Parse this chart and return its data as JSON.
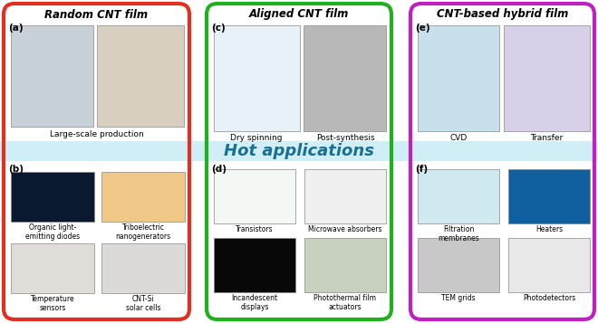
{
  "fig_width": 6.6,
  "fig_height": 3.57,
  "dpi": 100,
  "bg_color": "#ffffff",
  "section_titles": {
    "left": "Random CNT film",
    "center": "Aligned CNT film",
    "right": "CNT-based hybrid film"
  },
  "section_border_colors": {
    "left": "#e03020",
    "center": "#20b020",
    "right": "#c020c0"
  },
  "section_title_colors": {
    "left": "#000000",
    "center": "#000000",
    "right": "#000000"
  },
  "hot_applications_text": "Hot applications",
  "hot_applications_color": "#1a7090",
  "hot_band_color": "#c8ecf4",
  "panel_labels": [
    "(a)",
    "(b)",
    "(c)",
    "(d)",
    "(e)",
    "(f)"
  ],
  "left_top_caption": "Large-scale production",
  "left_b_captions": [
    "Organic light-\nemitting diodes",
    "Triboelectric\nnanogenerators",
    "Temperature\nsensors",
    "CNT-Si\nsolar cells"
  ],
  "center_top_captions": [
    "Dry spinning",
    "Post-synthesis"
  ],
  "center_bot_captions": [
    "Transistors",
    "Microwave absorbers",
    "Incandescent\ndisplays",
    "Photothermal film\nactuators"
  ],
  "right_top_captions": [
    "CVD",
    "Transfer"
  ],
  "right_bot_captions": [
    "Filtration\nmembranes",
    "Heaters",
    "TEM grids",
    "Photodetectors"
  ],
  "img_colors": {
    "a_left": "#c8d0d8",
    "a_right": "#d8cfc0",
    "b_tl": "#0a1830",
    "b_tr": "#f0c888",
    "b_bl": "#e0dcd8",
    "b_br": "#dcdad8",
    "c_left": "#e8f0f8",
    "c_right": "#b8b8b8",
    "d_tl": "#f4f8f4",
    "d_tr": "#f0f0f0",
    "d_bl": "#080808",
    "d_br": "#c8d0c0",
    "e_left": "#c8e0ec",
    "e_right": "#d8d0e8",
    "f_tl": "#d0e8f0",
    "f_tr": "#1060a0",
    "f_bl": "#c8c8c8",
    "f_br": "#e8e8e8"
  }
}
